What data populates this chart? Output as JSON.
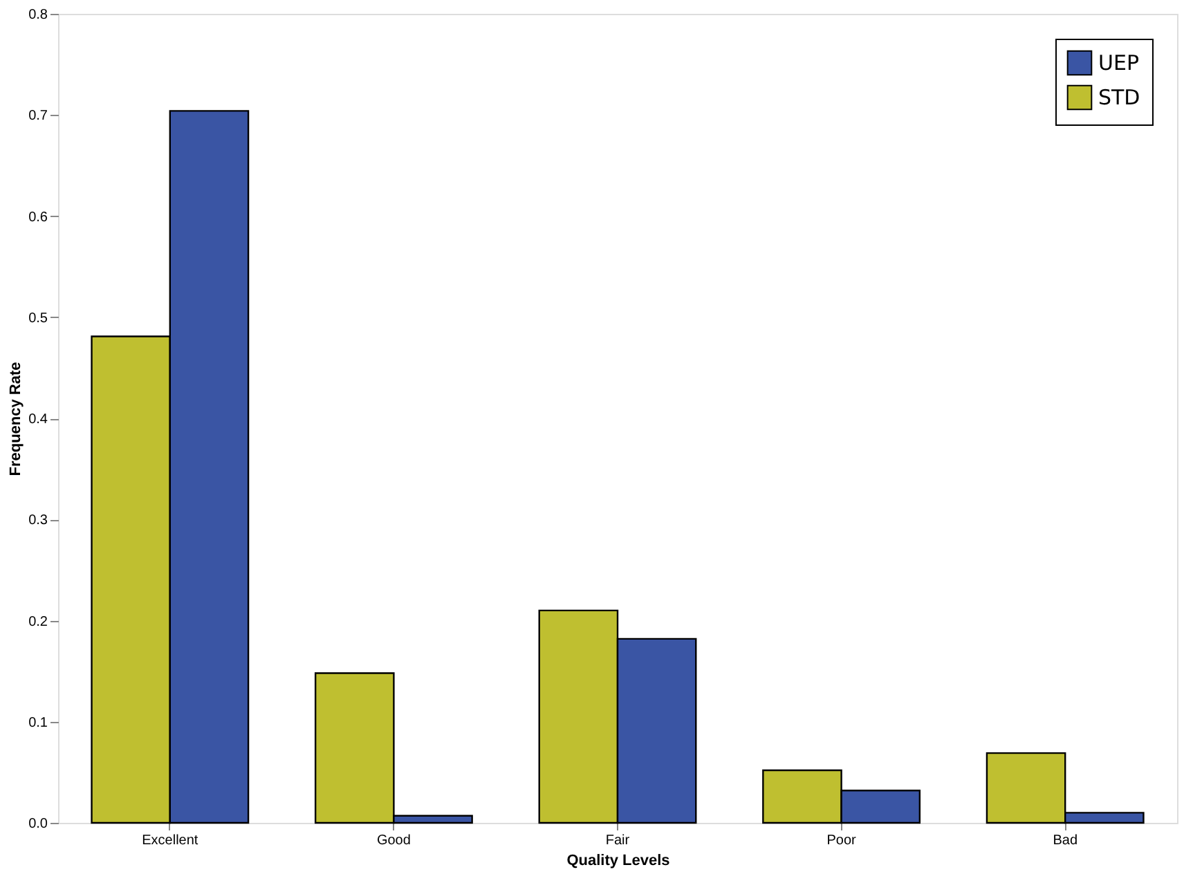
{
  "chart_data": {
    "type": "bar",
    "xlabel": "Quality Levels",
    "ylabel": "Frequency Rate",
    "categories": [
      "Excellent",
      "Good",
      "Fair",
      "Poor",
      "Bad"
    ],
    "series": [
      {
        "name": "STD",
        "color": "#bfbf30",
        "values": [
          0.481,
          0.148,
          0.21,
          0.052,
          0.069
        ]
      },
      {
        "name": "UEP",
        "color": "#3a55a4",
        "values": [
          0.704,
          0.007,
          0.182,
          0.032,
          0.01
        ]
      }
    ],
    "ylim": [
      0,
      0.8
    ],
    "yticks": [
      {
        "value": 0,
        "label": "0.0"
      },
      0.1,
      0.2,
      0.3,
      0.4,
      0.5,
      0.6,
      0.7,
      0.8
    ],
    "grid": false,
    "legend": "top right"
  }
}
